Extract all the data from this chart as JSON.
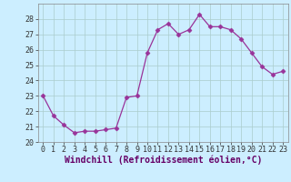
{
  "x": [
    0,
    1,
    2,
    3,
    4,
    5,
    6,
    7,
    8,
    9,
    10,
    11,
    12,
    13,
    14,
    15,
    16,
    17,
    18,
    19,
    20,
    21,
    22,
    23
  ],
  "y": [
    23.0,
    21.7,
    21.1,
    20.6,
    20.7,
    20.7,
    20.8,
    20.9,
    22.9,
    23.0,
    25.8,
    27.3,
    27.7,
    27.0,
    27.3,
    28.3,
    27.5,
    27.5,
    27.3,
    26.7,
    25.8,
    24.9,
    24.4,
    24.6
  ],
  "line_color": "#993399",
  "marker": "D",
  "marker_size": 2.5,
  "bg_color": "#cceeff",
  "grid_color": "#aacccc",
  "xlabel": "Windchill (Refroidissement éolien,°C)",
  "xlabel_fontsize": 7,
  "ylim": [
    20,
    29
  ],
  "xlim": [
    -0.5,
    23.5
  ],
  "yticks": [
    20,
    21,
    22,
    23,
    24,
    25,
    26,
    27,
    28
  ],
  "xticks": [
    0,
    1,
    2,
    3,
    4,
    5,
    6,
    7,
    8,
    9,
    10,
    11,
    12,
    13,
    14,
    15,
    16,
    17,
    18,
    19,
    20,
    21,
    22,
    23
  ],
  "tick_fontsize": 6,
  "spine_color": "#888888"
}
